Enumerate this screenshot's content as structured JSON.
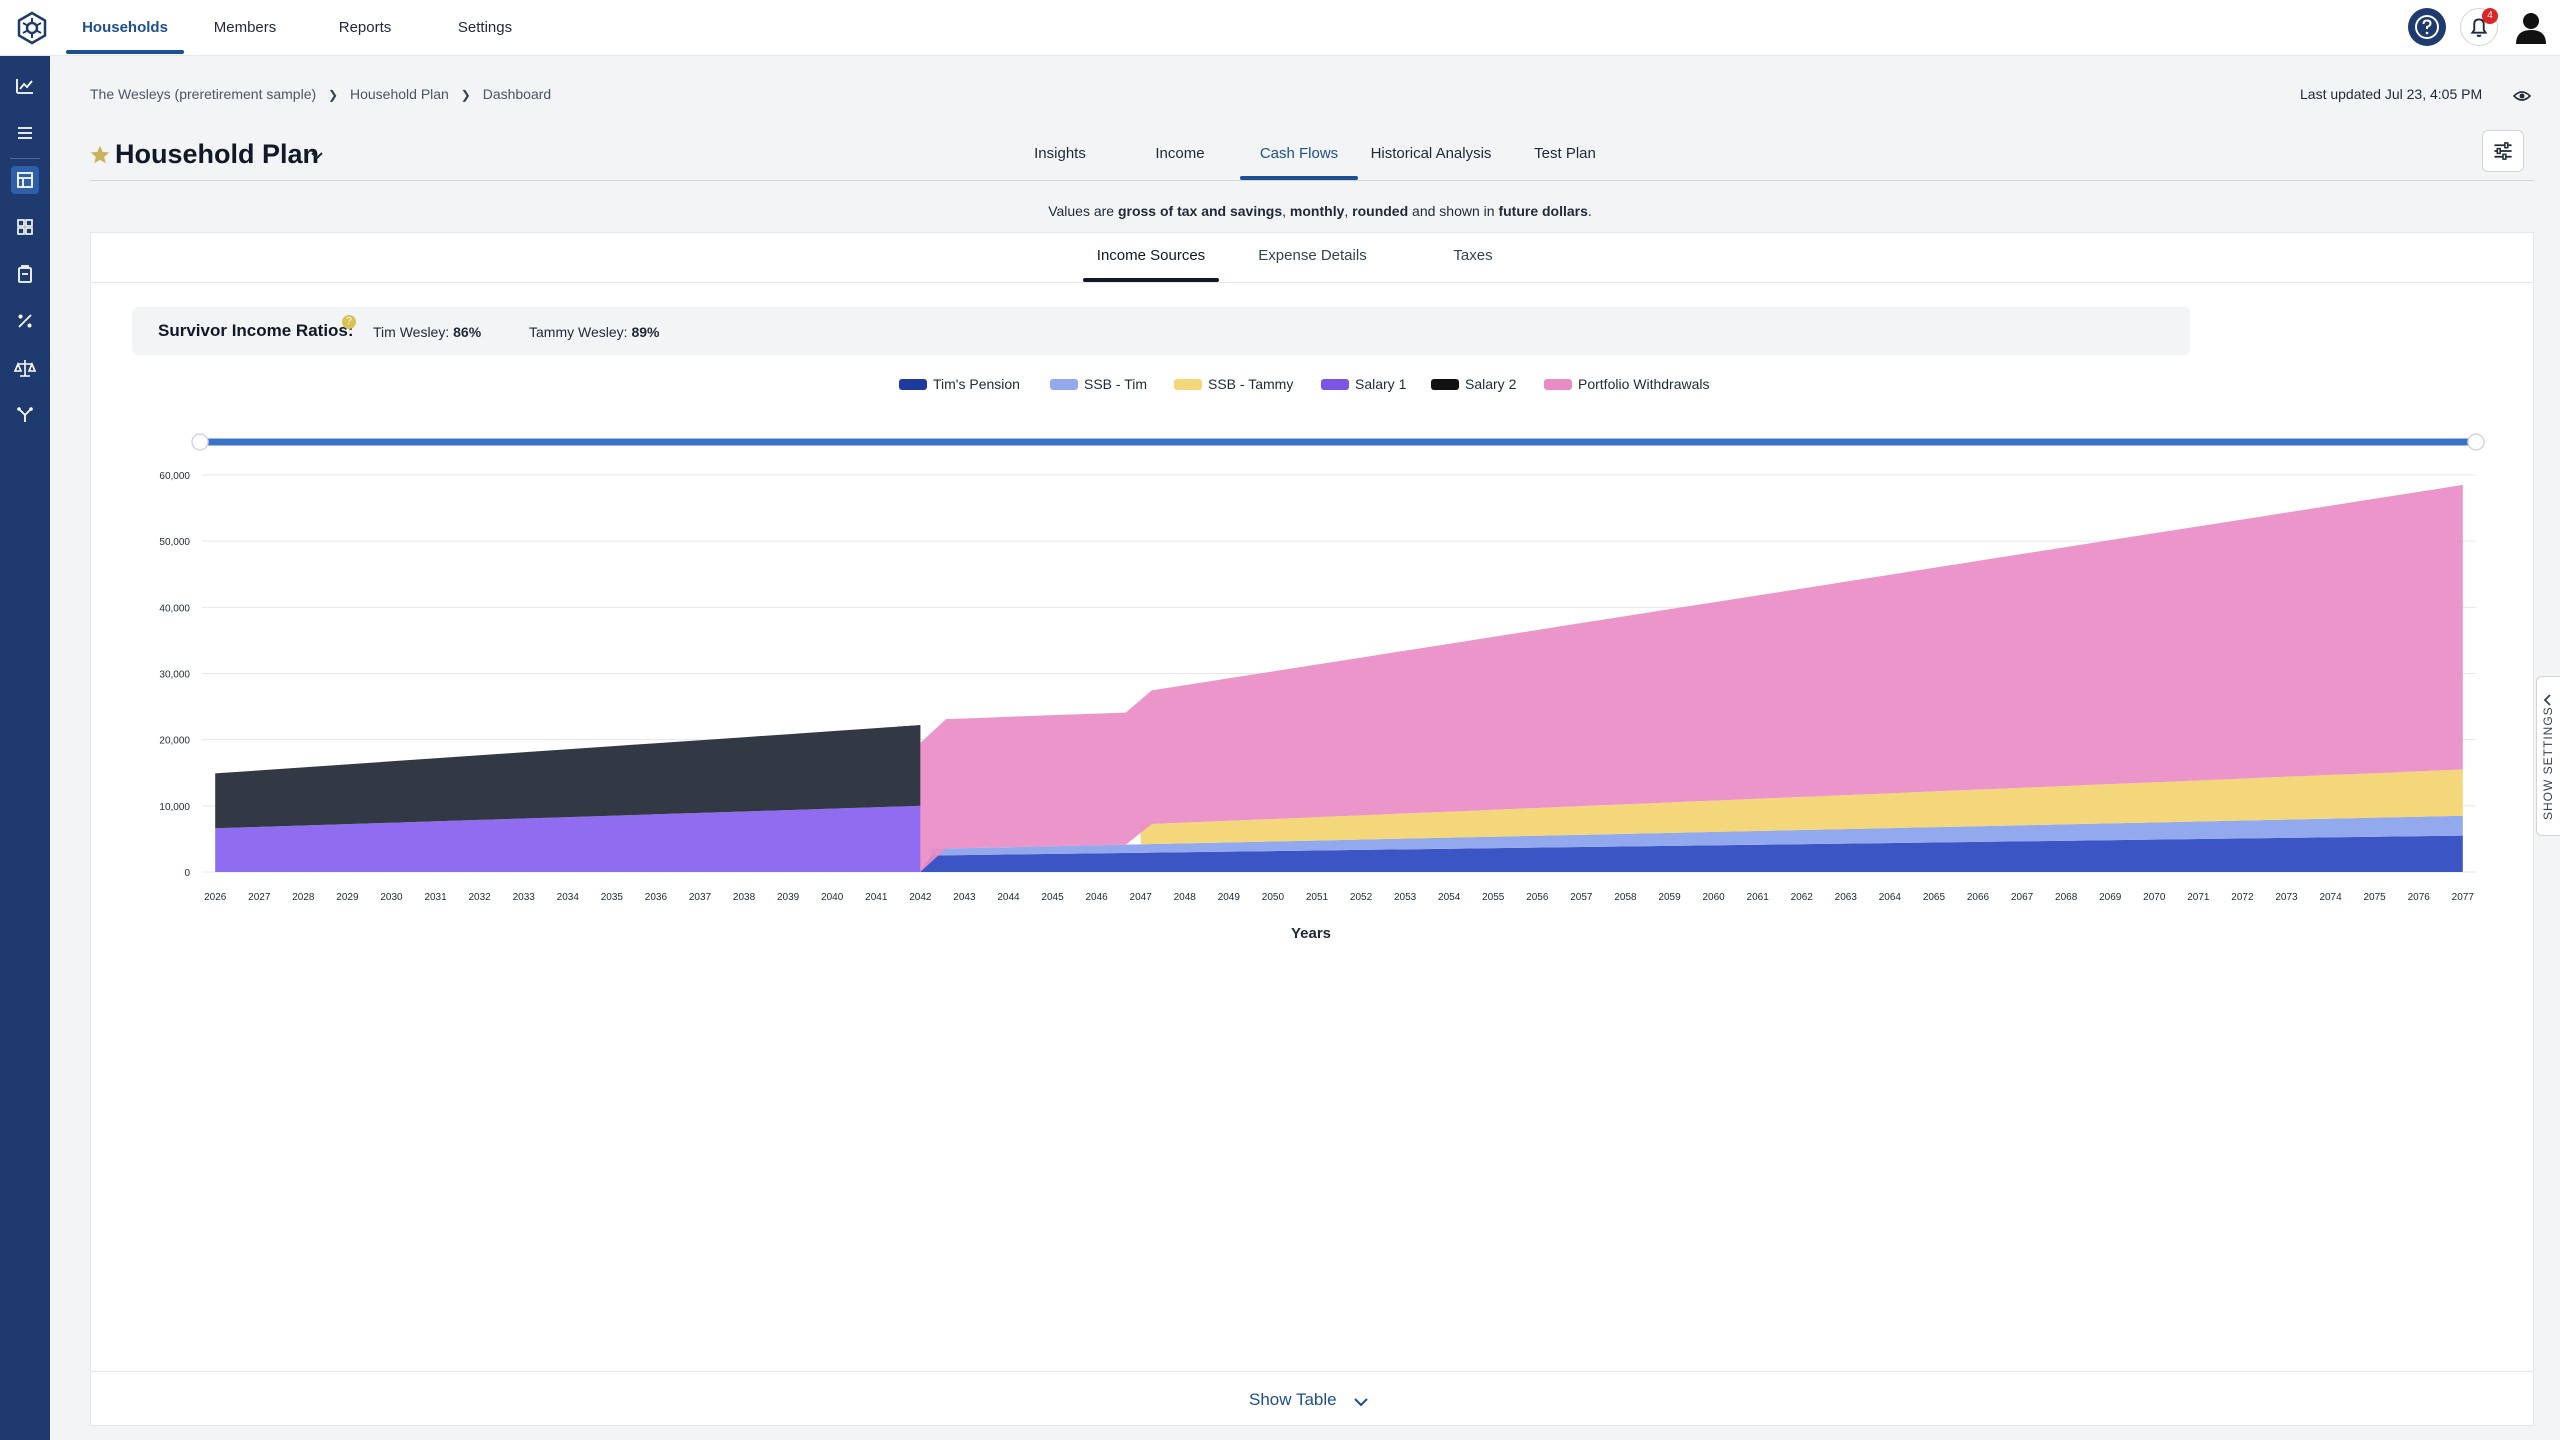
{
  "topnav": {
    "items": [
      {
        "label": "Households",
        "active": true
      },
      {
        "label": "Members"
      },
      {
        "label": "Reports"
      },
      {
        "label": "Settings"
      }
    ],
    "notification_count": "4"
  },
  "sidebar": {
    "icons": [
      "chart-line-icon",
      "list-icon",
      "table-icon",
      "grid-icon",
      "clipboard-icon",
      "percent-icon",
      "scale-icon",
      "flow-icon"
    ]
  },
  "breadcrumb": {
    "items": [
      "The Wesleys (preretirement sample)",
      "Household Plan",
      "Dashboard"
    ]
  },
  "last_updated": "Last updated Jul 23, 4:05 PM",
  "plan": {
    "title": "Household Plan"
  },
  "main_tabs": [
    {
      "label": "Insights"
    },
    {
      "label": "Income"
    },
    {
      "label": "Cash Flows",
      "active": true
    },
    {
      "label": "Historical Analysis"
    },
    {
      "label": "Test Plan"
    }
  ],
  "values_note": {
    "prefix": "Values are ",
    "bold1": "gross of tax and savings",
    "sep1": ", ",
    "bold2": "monthly",
    "sep2": ", ",
    "bold3": "rounded",
    "mid": " and shown in ",
    "bold4": "future dollars",
    "end": "."
  },
  "sub_tabs": [
    {
      "label": "Income Sources",
      "active": true
    },
    {
      "label": "Expense Details"
    },
    {
      "label": "Taxes"
    }
  ],
  "survivor": {
    "title": "Survivor Income Ratios:",
    "help": "?",
    "ratios": [
      {
        "name": "Tim Wesley: ",
        "value": "86%"
      },
      {
        "name": "Tammy Wesley: ",
        "value": "89%"
      }
    ]
  },
  "show_table": "Show Table",
  "settings_tab": "SHOW SETTINGS",
  "chart_data": {
    "type": "area",
    "stacked": true,
    "xlabel": "Years",
    "ylabel": "",
    "ylim": [
      0,
      60000
    ],
    "y_ticks": [
      "0",
      "10,000",
      "20,000",
      "30,000",
      "40,000",
      "50,000",
      "60,000"
    ],
    "x": [
      2026,
      2027,
      2028,
      2029,
      2030,
      2031,
      2032,
      2033,
      2034,
      2035,
      2036,
      2037,
      2038,
      2039,
      2040,
      2041,
      2042,
      2043,
      2044,
      2045,
      2046,
      2047,
      2048,
      2049,
      2050,
      2051,
      2052,
      2053,
      2054,
      2055,
      2056,
      2057,
      2058,
      2059,
      2060,
      2061,
      2062,
      2063,
      2064,
      2065,
      2066,
      2067,
      2068,
      2069,
      2070,
      2071,
      2072,
      2073,
      2074,
      2075,
      2076,
      2077
    ],
    "legend_position": "top-center",
    "grid": true,
    "series": [
      {
        "name": "Tim's Pension",
        "color": "#3b55c4",
        "points": [
          [
            2042,
            0
          ],
          [
            2042.25,
            2500
          ],
          [
            2077,
            5500
          ]
        ]
      },
      {
        "name": "SSB - Tim",
        "color": "#93a9ee",
        "points": [
          [
            2042.25,
            1000
          ],
          [
            2077,
            3000
          ]
        ]
      },
      {
        "name": "SSB - Tammy",
        "color": "#f3d77a",
        "points": [
          [
            2047,
            3000
          ],
          [
            2077,
            7000
          ]
        ]
      },
      {
        "name": "Salary 1",
        "color": "#8f6cf0",
        "points": [
          [
            2026,
            6600
          ],
          [
            2042,
            10000
          ]
        ]
      },
      {
        "name": "Salary 2",
        "color": "#323844",
        "points": [
          [
            2026,
            8300
          ],
          [
            2042,
            12200
          ]
        ]
      },
      {
        "name": "Portfolio Withdrawals",
        "color": "#e98cc5",
        "points": [
          [
            2041.5,
            20000
          ],
          [
            2042,
            19500
          ],
          [
            2047,
            20000
          ],
          [
            2077,
            43000
          ]
        ]
      }
    ]
  }
}
